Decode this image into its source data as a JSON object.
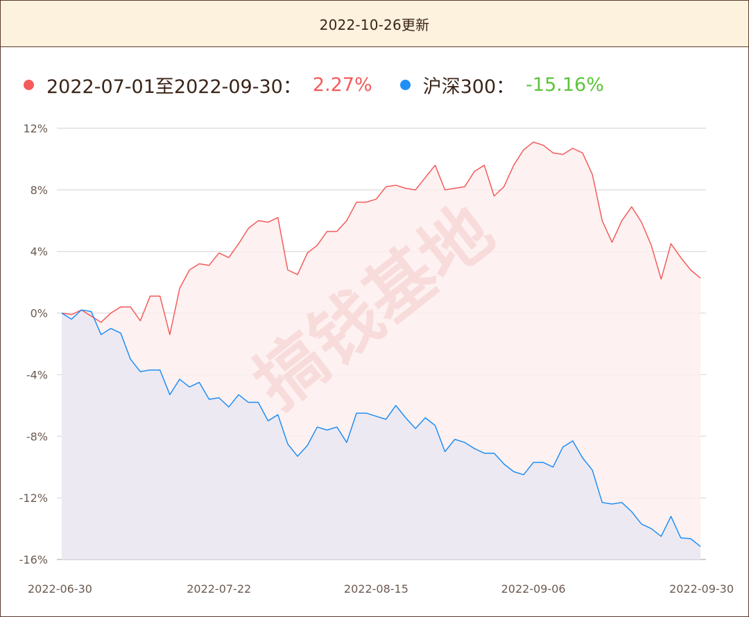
{
  "header": {
    "title": "2022-10-26更新"
  },
  "legend": [
    {
      "label": "2022-07-01至2022-09-30：",
      "value": "2.27%",
      "dot_color": "#f35b5b",
      "value_color": "#f35b5b"
    },
    {
      "label": "沪深300：",
      "value": "-15.16%",
      "dot_color": "#1e8ff5",
      "value_color": "#5cc43a"
    }
  ],
  "watermark": "搞钱基地",
  "chart_data": {
    "type": "area",
    "ylim": [
      -16,
      12
    ],
    "yticks": [
      12,
      8,
      4,
      0,
      -4,
      -8,
      -12,
      -16
    ],
    "ytick_labels": [
      "12%",
      "8%",
      "4%",
      "0%",
      "-4%",
      "-8%",
      "-12%",
      "-16%"
    ],
    "xtick_labels": [
      "2022-06-30",
      "2022-07-22",
      "2022-08-15",
      "2022-09-06",
      "2022-09-30"
    ],
    "xtick_indices": [
      0,
      16,
      32,
      48,
      65
    ],
    "grid": true,
    "legend_position": "top-left",
    "series": [
      {
        "name": "2022-07-01至2022-09-30",
        "color": "#f35b5b",
        "fill": "#fdeeee",
        "values": [
          0,
          -0.1,
          0.2,
          -0.2,
          -0.6,
          0,
          0.4,
          0.4,
          -0.5,
          1.1,
          1.1,
          -1.4,
          1.6,
          2.8,
          3.2,
          3.1,
          3.9,
          3.6,
          4.5,
          5.5,
          6.0,
          5.9,
          6.2,
          2.8,
          2.5,
          3.9,
          4.4,
          5.3,
          5.3,
          6.0,
          7.2,
          7.2,
          7.4,
          8.2,
          8.3,
          8.1,
          8.0,
          8.8,
          9.6,
          8.0,
          8.1,
          8.2,
          9.2,
          9.6,
          7.6,
          8.2,
          9.6,
          10.6,
          11.1,
          10.9,
          10.4,
          10.3,
          10.7,
          10.4,
          9.0,
          6.0,
          4.6,
          6.0,
          6.9,
          5.9,
          4.4,
          2.2,
          4.5,
          3.6,
          2.8,
          2.27
        ]
      },
      {
        "name": "沪深300",
        "color": "#1e8ff5",
        "fill": "#ece8f1",
        "values": [
          0,
          -0.4,
          0.2,
          0.1,
          -1.4,
          -1.0,
          -1.3,
          -3.0,
          -3.8,
          -3.7,
          -3.7,
          -5.3,
          -4.3,
          -4.8,
          -4.5,
          -5.6,
          -5.5,
          -6.1,
          -5.3,
          -5.8,
          -5.8,
          -7.0,
          -6.6,
          -8.5,
          -9.3,
          -8.6,
          -7.4,
          -7.6,
          -7.4,
          -8.4,
          -6.5,
          -6.5,
          -6.7,
          -6.9,
          -6.0,
          -6.8,
          -7.5,
          -6.8,
          -7.3,
          -9.0,
          -8.2,
          -8.4,
          -8.8,
          -9.1,
          -9.1,
          -9.8,
          -10.3,
          -10.5,
          -9.7,
          -9.7,
          -10.0,
          -8.7,
          -8.3,
          -9.4,
          -10.2,
          -12.3,
          -12.4,
          -12.3,
          -12.9,
          -13.7,
          -14.0,
          -14.5,
          -13.2,
          -14.6,
          -14.65,
          -15.16
        ]
      }
    ]
  }
}
